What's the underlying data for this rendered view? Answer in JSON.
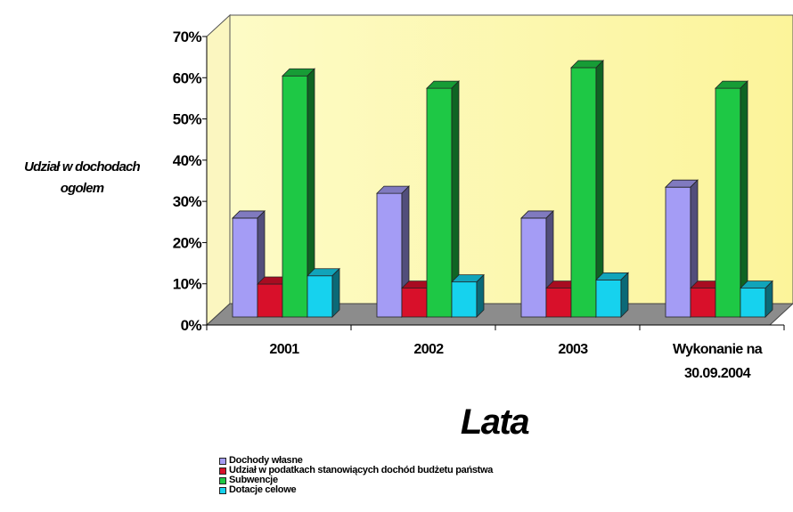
{
  "chart_data": {
    "type": "bar",
    "title": "",
    "ylabel": "Udział w dochodach ogolem",
    "xlabel": "Lata",
    "ylim": [
      0,
      70
    ],
    "yticks": [
      "0%",
      "10%",
      "20%",
      "30%",
      "40%",
      "50%",
      "60%",
      "70%"
    ],
    "categories": [
      "2001",
      "2002",
      "2003",
      "Wykonanie na 30.09.2004"
    ],
    "series": [
      {
        "name": "Dochody własne",
        "values": [
          24,
          30,
          24,
          31.5
        ],
        "color": "#a49cf5"
      },
      {
        "name": "Udział w podatkach stanowiących dochód  budżetu państwa",
        "values": [
          8,
          7,
          7,
          7
        ],
        "color": "#d8102a"
      },
      {
        "name": "Subwencje",
        "values": [
          58.5,
          55.5,
          60.5,
          55.5
        ],
        "color": "#1ec845"
      },
      {
        "name": "Dotacje celowe",
        "values": [
          10,
          8.5,
          9,
          7
        ],
        "color": "#16d2ee"
      }
    ],
    "legend_position": "bottom-left",
    "grid": false
  }
}
